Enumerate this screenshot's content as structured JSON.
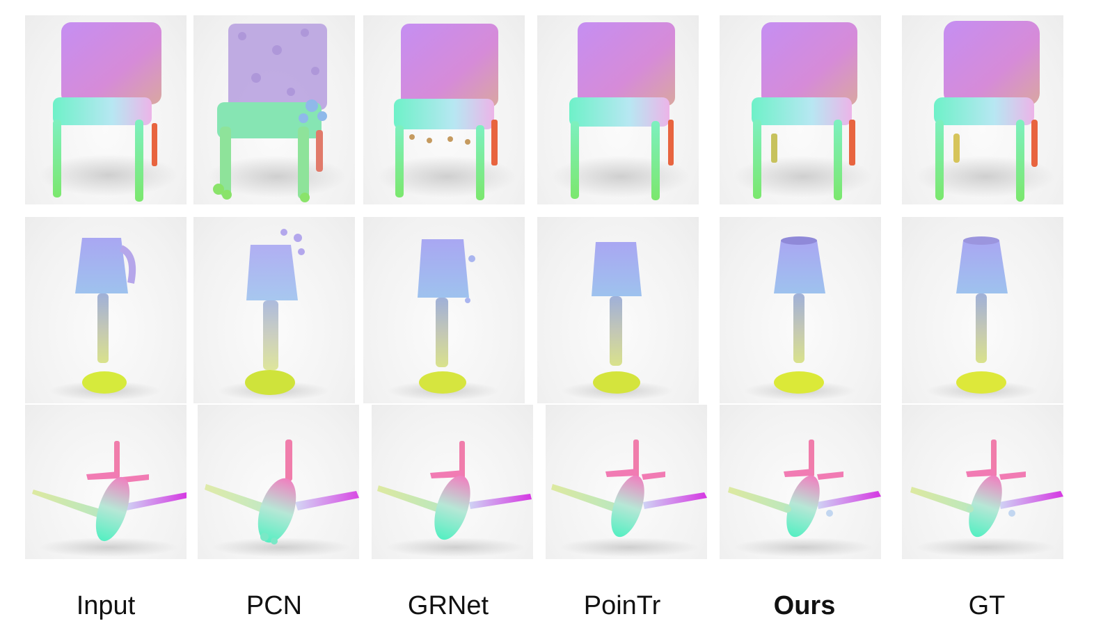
{
  "columns": [
    {
      "label": "Input",
      "quality": 0
    },
    {
      "label": "PCN",
      "quality": 1
    },
    {
      "label": "GRNet",
      "quality": 2
    },
    {
      "label": "PoinTr",
      "quality": 3
    },
    {
      "label": "Ours",
      "quality": 4,
      "emphasis": true
    },
    {
      "label": "GT",
      "quality": 5
    }
  ],
  "rows": [
    {
      "object": "chair"
    },
    {
      "object": "lamp"
    },
    {
      "object": "airplane"
    }
  ]
}
